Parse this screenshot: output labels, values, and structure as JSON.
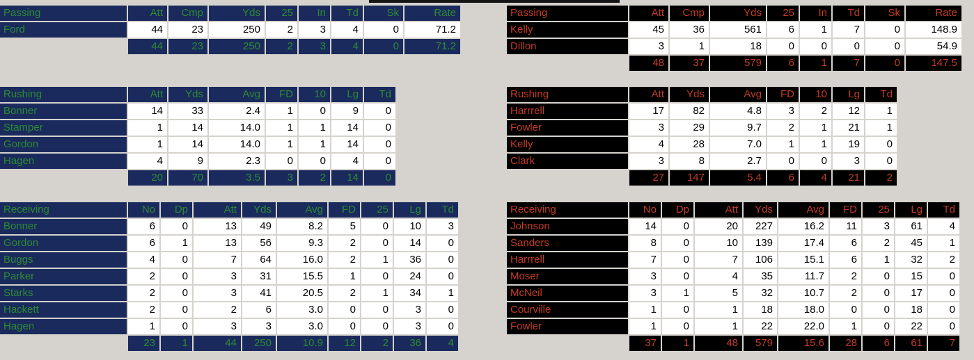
{
  "top_bar": {
    "description": "partial edge of window above, clipped at top of screen",
    "color": "#141414"
  },
  "teams": [
    {
      "id": "home",
      "side": "left",
      "colors": {
        "header_bg": "#1a2a5c",
        "header_text": "#2e8b33"
      },
      "tables": [
        {
          "id": "passing",
          "title": "Passing",
          "columns": [
            "Att",
            "Cmp",
            "Yds",
            "25",
            "In",
            "Td",
            "Sk",
            "Rate"
          ],
          "rows": [
            {
              "name": "Ford",
              "values": [
                "44",
                "23",
                "250",
                "2",
                "3",
                "4",
                "0",
                "71.2"
              ]
            }
          ],
          "totals": [
            "44",
            "23",
            "250",
            "2",
            "3",
            "4",
            "0",
            "71.2"
          ]
        },
        {
          "id": "rushing",
          "title": "Rushing",
          "columns": [
            "Att",
            "Yds",
            "Avg",
            "FD",
            "10",
            "Lg",
            "Td"
          ],
          "rows": [
            {
              "name": "Bonner",
              "values": [
                "14",
                "33",
                "2.4",
                "1",
                "0",
                "9",
                "0"
              ]
            },
            {
              "name": "Stamper",
              "values": [
                "1",
                "14",
                "14.0",
                "1",
                "1",
                "14",
                "0"
              ]
            },
            {
              "name": "Gordon",
              "values": [
                "1",
                "14",
                "14.0",
                "1",
                "1",
                "14",
                "0"
              ]
            },
            {
              "name": "Hagen",
              "values": [
                "4",
                "9",
                "2.3",
                "0",
                "0",
                "4",
                "0"
              ]
            }
          ],
          "totals": [
            "20",
            "70",
            "3.5",
            "3",
            "2",
            "14",
            "0"
          ]
        },
        {
          "id": "receiving",
          "title": "Receiving",
          "columns": [
            "No",
            "Dp",
            "Att",
            "Yds",
            "Avg",
            "FD",
            "25",
            "Lg",
            "Td"
          ],
          "rows": [
            {
              "name": "Bonner",
              "values": [
                "6",
                "0",
                "13",
                "49",
                "8.2",
                "5",
                "0",
                "10",
                "3"
              ]
            },
            {
              "name": "Gordon",
              "values": [
                "6",
                "1",
                "13",
                "56",
                "9.3",
                "2",
                "0",
                "14",
                "0"
              ]
            },
            {
              "name": "Buggs",
              "values": [
                "4",
                "0",
                "7",
                "64",
                "16.0",
                "2",
                "1",
                "36",
                "0"
              ]
            },
            {
              "name": "Parker",
              "values": [
                "2",
                "0",
                "3",
                "31",
                "15.5",
                "1",
                "0",
                "24",
                "0"
              ]
            },
            {
              "name": "Starks",
              "values": [
                "2",
                "0",
                "3",
                "41",
                "20.5",
                "2",
                "1",
                "34",
                "1"
              ]
            },
            {
              "name": "Hackett",
              "values": [
                "2",
                "0",
                "2",
                "6",
                "3.0",
                "0",
                "0",
                "3",
                "0"
              ]
            },
            {
              "name": "Hagen",
              "values": [
                "1",
                "0",
                "3",
                "3",
                "3.0",
                "0",
                "0",
                "3",
                "0"
              ]
            }
          ],
          "totals": [
            "23",
            "1",
            "44",
            "250",
            "10.9",
            "12",
            "2",
            "36",
            "4"
          ]
        }
      ]
    },
    {
      "id": "away",
      "side": "right",
      "colors": {
        "header_bg": "#000000",
        "header_text": "#c43b24"
      },
      "tables": [
        {
          "id": "passing",
          "title": "Passing",
          "columns": [
            "Att",
            "Cmp",
            "Yds",
            "25",
            "In",
            "Td",
            "Sk",
            "Rate"
          ],
          "rows": [
            {
              "name": "Kelly",
              "values": [
                "45",
                "36",
                "561",
                "6",
                "1",
                "7",
                "0",
                "148.9"
              ]
            },
            {
              "name": "Dillon",
              "values": [
                "3",
                "1",
                "18",
                "0",
                "0",
                "0",
                "0",
                "54.9"
              ]
            }
          ],
          "totals": [
            "48",
            "37",
            "579",
            "6",
            "1",
            "7",
            "0",
            "147.5"
          ]
        },
        {
          "id": "rushing",
          "title": "Rushing",
          "columns": [
            "Att",
            "Yds",
            "Avg",
            "FD",
            "10",
            "Lg",
            "Td"
          ],
          "rows": [
            {
              "name": "Harrrell",
              "values": [
                "17",
                "82",
                "4.8",
                "3",
                "2",
                "12",
                "1"
              ]
            },
            {
              "name": "Fowler",
              "values": [
                "3",
                "29",
                "9.7",
                "2",
                "1",
                "21",
                "1"
              ]
            },
            {
              "name": "Kelly",
              "values": [
                "4",
                "28",
                "7.0",
                "1",
                "1",
                "19",
                "0"
              ]
            },
            {
              "name": "Clark",
              "values": [
                "3",
                "8",
                "2.7",
                "0",
                "0",
                "3",
                "0"
              ]
            }
          ],
          "totals": [
            "27",
            "147",
            "5.4",
            "6",
            "4",
            "21",
            "2"
          ]
        },
        {
          "id": "receiving",
          "title": "Receiving",
          "columns": [
            "No",
            "Dp",
            "Att",
            "Yds",
            "Avg",
            "FD",
            "25",
            "Lg",
            "Td"
          ],
          "rows": [
            {
              "name": "Johnson",
              "values": [
                "14",
                "0",
                "20",
                "227",
                "16.2",
                "11",
                "3",
                "61",
                "4"
              ]
            },
            {
              "name": "Sanders",
              "values": [
                "8",
                "0",
                "10",
                "139",
                "17.4",
                "6",
                "2",
                "45",
                "1"
              ]
            },
            {
              "name": "Harrrell",
              "values": [
                "7",
                "0",
                "7",
                "106",
                "15.1",
                "6",
                "1",
                "32",
                "2"
              ]
            },
            {
              "name": "Moser",
              "values": [
                "3",
                "0",
                "4",
                "35",
                "11.7",
                "2",
                "0",
                "15",
                "0"
              ]
            },
            {
              "name": "McNeil",
              "values": [
                "3",
                "1",
                "5",
                "32",
                "10.7",
                "2",
                "0",
                "17",
                "0"
              ]
            },
            {
              "name": "Courville",
              "values": [
                "1",
                "0",
                "1",
                "18",
                "18.0",
                "0",
                "0",
                "18",
                "0"
              ]
            },
            {
              "name": "Fowler",
              "values": [
                "1",
                "0",
                "1",
                "22",
                "22.0",
                "1",
                "0",
                "22",
                "0"
              ]
            }
          ],
          "totals": [
            "37",
            "1",
            "48",
            "579",
            "15.6",
            "28",
            "6",
            "61",
            "7"
          ]
        }
      ]
    }
  ]
}
